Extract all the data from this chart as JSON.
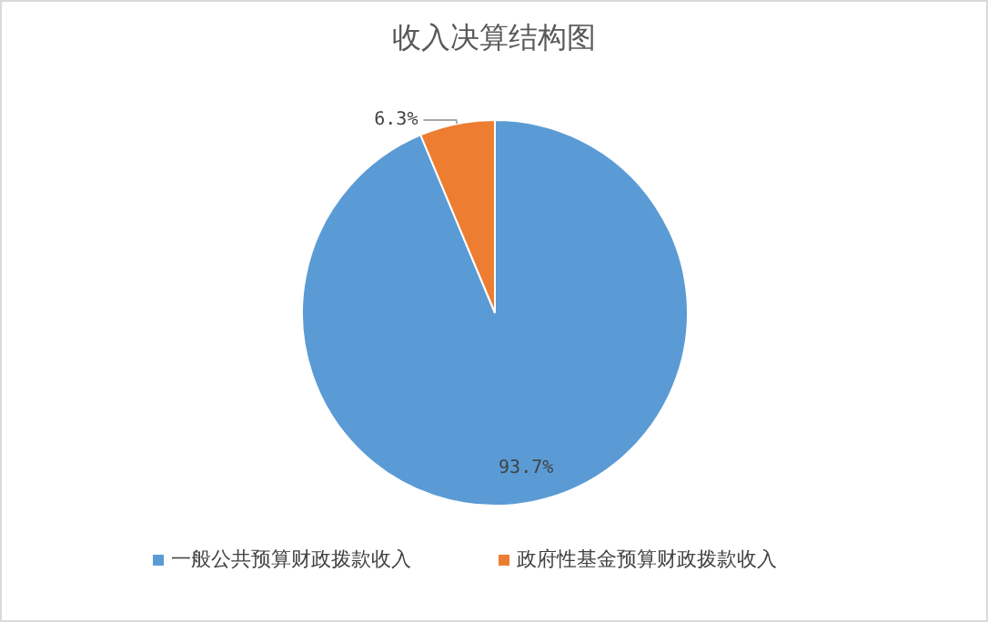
{
  "chart_data": {
    "type": "pie",
    "title": "收入决算结构图",
    "categories": [
      "一般公共预算财政拨款收入",
      "政府性基金预算财政拨款收入"
    ],
    "values": [
      93.7,
      6.3
    ],
    "colors": [
      "#5b9bd5",
      "#ed7d31"
    ],
    "value_labels": [
      "93.7%",
      "6.3%"
    ],
    "legend": "bottom"
  }
}
